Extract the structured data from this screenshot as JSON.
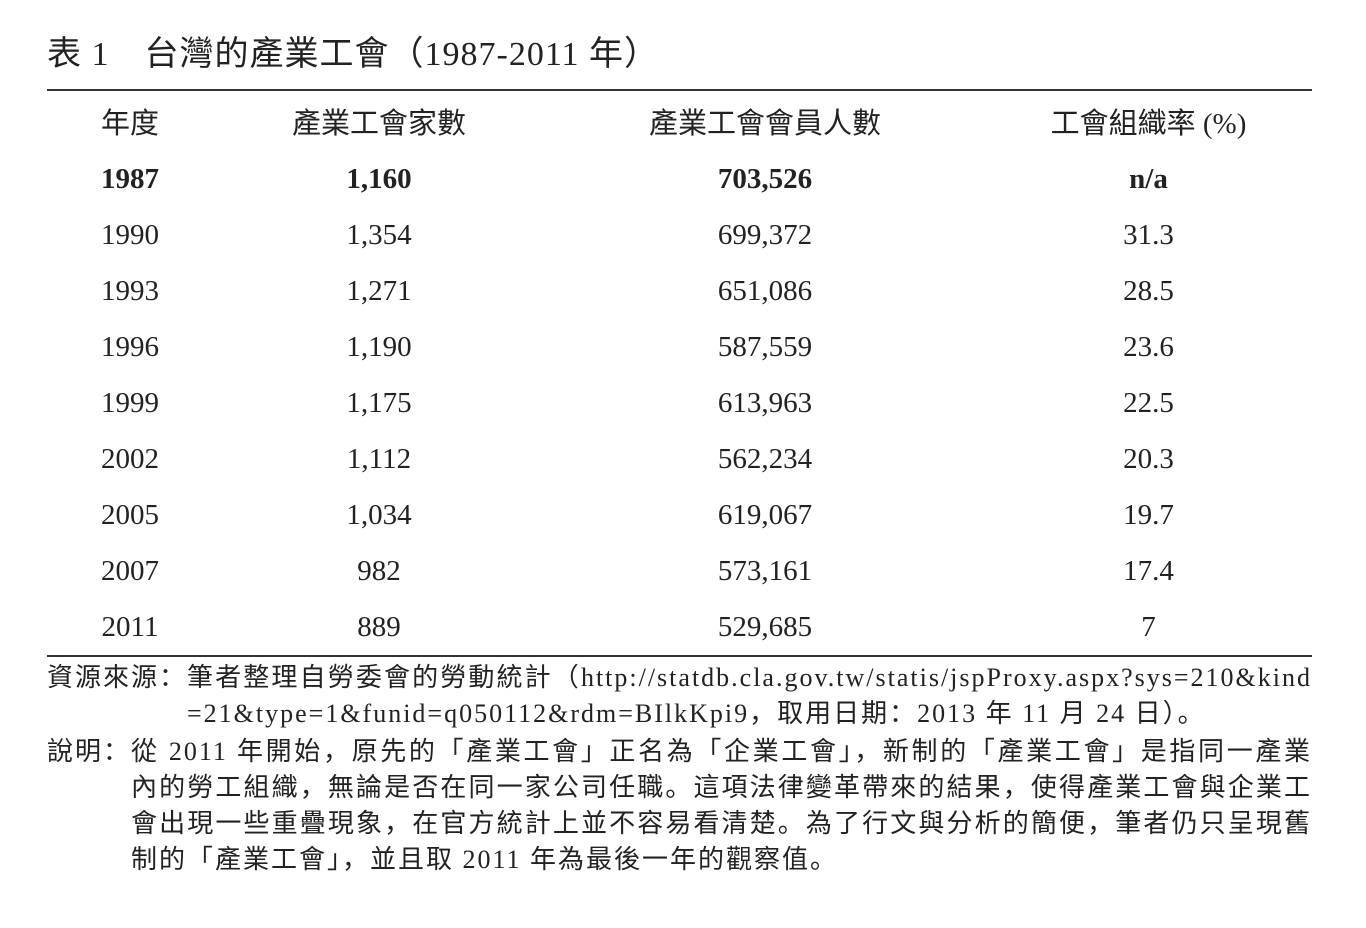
{
  "title": "表 1　台灣的產業工會（1987-2011 年）",
  "table": {
    "header": [
      "年度",
      "產業工會家數",
      "產業工會會員人數",
      "工會組織率 (%)"
    ],
    "rows": [
      [
        "1987",
        "1,160",
        "703,526",
        "n/a"
      ],
      [
        "1990",
        "1,354",
        "699,372",
        "31.3"
      ],
      [
        "1993",
        "1,271",
        "651,086",
        "28.5"
      ],
      [
        "1996",
        "1,190",
        "587,559",
        "23.6"
      ],
      [
        "1999",
        "1,175",
        "613,963",
        "22.5"
      ],
      [
        "2002",
        "1,112",
        "562,234",
        "20.3"
      ],
      [
        "2005",
        "1,034",
        "619,067",
        "19.7"
      ],
      [
        "2007",
        "982",
        "573,161",
        "17.4"
      ],
      [
        "2011",
        "889",
        "529,685",
        "7"
      ]
    ]
  },
  "notes": [
    {
      "label": "資源來源：",
      "text": "筆者整理自勞委會的勞動統計（http://statdb.cla.gov.tw/statis/jspProxy.aspx?sys=210&kind=21&type=1&funid=q050112&rdm=BIlkKpi9，取用日期：2013 年 11 月 24 日）。"
    },
    {
      "label": "說明：",
      "text": "從 2011 年開始，原先的「產業工會」正名為「企業工會」，新制的「產業工會」是指同一產業內的勞工組織，無論是否在同一家公司任職。這項法律變革帶來的結果，使得產業工會與企業工會出現一些重疊現象，在官方統計上並不容易看清楚。為了行文與分析的簡便，筆者仍只呈現舊制的「產業工會」，並且取 2011 年為最後一年的觀察值。"
    }
  ]
}
